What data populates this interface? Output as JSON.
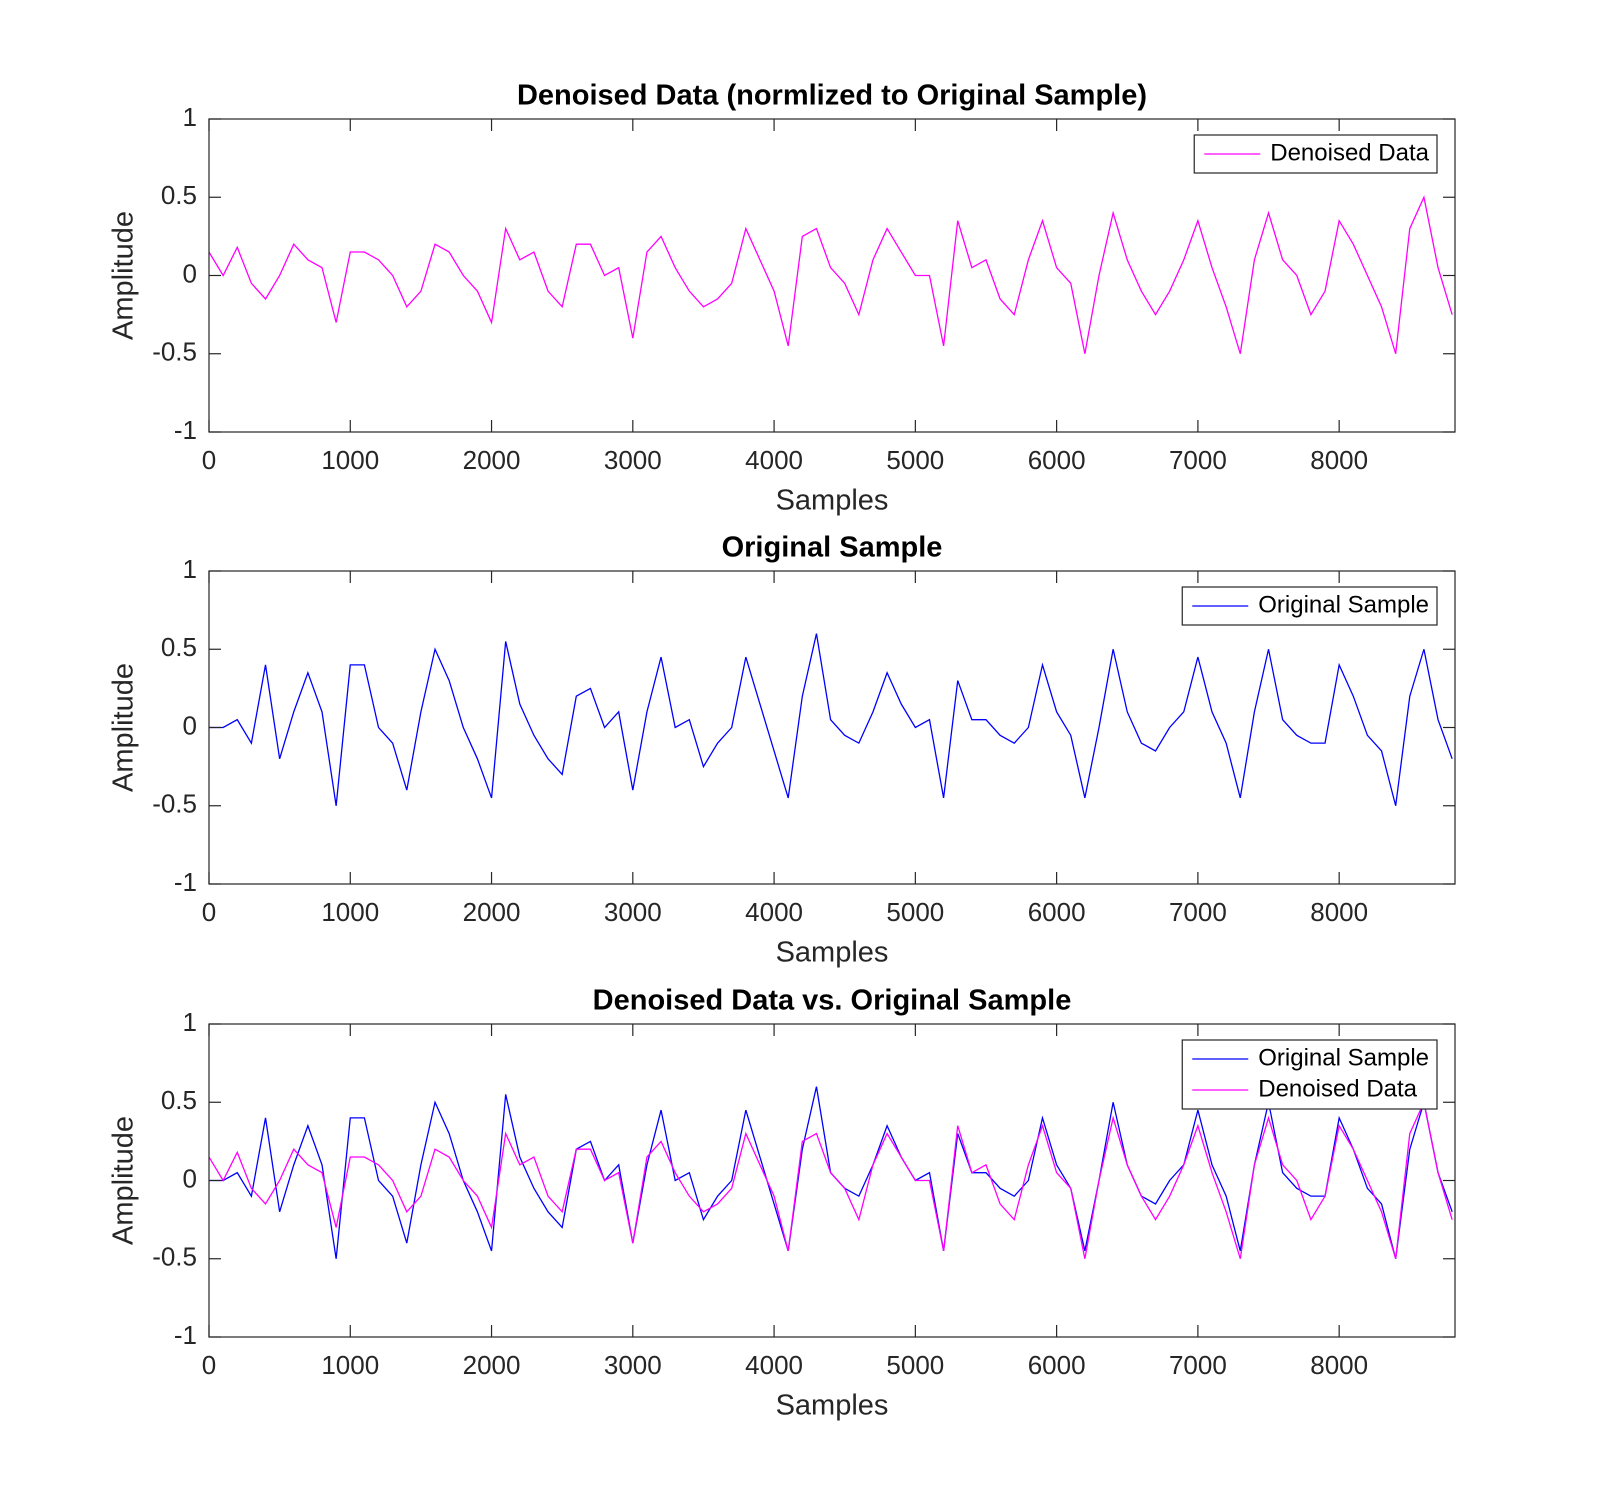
{
  "chart_data": [
    {
      "type": "line",
      "title": "Denoised Data (normlized to Original Sample)",
      "xlabel": "Samples",
      "ylabel": "Amplitude",
      "x": [
        0,
        100,
        200,
        300,
        400,
        500,
        600,
        700,
        800,
        900,
        1000,
        1100,
        1200,
        1300,
        1400,
        1500,
        1600,
        1700,
        1800,
        1900,
        2000,
        2100,
        2200,
        2300,
        2400,
        2500,
        2600,
        2700,
        2800,
        2900,
        3000,
        3100,
        3200,
        3300,
        3400,
        3500,
        3600,
        3700,
        3800,
        3900,
        4000,
        4100,
        4200,
        4300,
        4400,
        4500,
        4600,
        4700,
        4800,
        4900,
        5000,
        5100,
        5200,
        5300,
        5400,
        5500,
        5600,
        5700,
        5800,
        5900,
        6000,
        6100,
        6200,
        6300,
        6400,
        6500,
        6600,
        6700,
        6800,
        6900,
        7000,
        7100,
        7200,
        7300,
        7400,
        7500,
        7600,
        7700,
        7800,
        7900,
        8000,
        8100,
        8200,
        8300,
        8400,
        8500,
        8600,
        8700,
        8800
      ],
      "series": [
        {
          "name": "Denoised Data",
          "color": "#ff00ff",
          "values": [
            0.15,
            0.0,
            0.18,
            -0.05,
            -0.15,
            0.0,
            0.2,
            0.1,
            0.05,
            -0.3,
            0.15,
            0.15,
            0.1,
            0.0,
            -0.2,
            -0.1,
            0.2,
            0.15,
            0.0,
            -0.1,
            -0.3,
            0.3,
            0.1,
            0.15,
            -0.1,
            -0.2,
            0.2,
            0.2,
            0.0,
            0.05,
            -0.4,
            0.15,
            0.25,
            0.05,
            -0.1,
            -0.2,
            -0.15,
            -0.05,
            0.3,
            0.1,
            -0.1,
            -0.45,
            0.25,
            0.3,
            0.05,
            -0.05,
            -0.25,
            0.1,
            0.3,
            0.15,
            0.0,
            0.0,
            -0.45,
            0.35,
            0.05,
            0.1,
            -0.15,
            -0.25,
            0.1,
            0.35,
            0.05,
            -0.05,
            -0.5,
            0.0,
            0.4,
            0.1,
            -0.1,
            -0.25,
            -0.1,
            0.1,
            0.35,
            0.05,
            -0.2,
            -0.5,
            0.1,
            0.4,
            0.1,
            0.0,
            -0.25,
            -0.1,
            0.35,
            0.2,
            0.0,
            -0.2,
            -0.5,
            0.3,
            0.5,
            0.05,
            -0.25
          ]
        }
      ],
      "xlim": [
        0,
        8820
      ],
      "ylim": [
        -1,
        1
      ],
      "xticks": [
        0,
        1000,
        2000,
        3000,
        4000,
        5000,
        6000,
        7000,
        8000
      ],
      "yticks": [
        -1,
        -0.5,
        0,
        0.5,
        1
      ],
      "grid": false,
      "legend": "northeast"
    },
    {
      "type": "line",
      "title": "Original Sample",
      "xlabel": "Samples",
      "ylabel": "Amplitude",
      "x": [
        0,
        100,
        200,
        300,
        400,
        500,
        600,
        700,
        800,
        900,
        1000,
        1100,
        1200,
        1300,
        1400,
        1500,
        1600,
        1700,
        1800,
        1900,
        2000,
        2100,
        2200,
        2300,
        2400,
        2500,
        2600,
        2700,
        2800,
        2900,
        3000,
        3100,
        3200,
        3300,
        3400,
        3500,
        3600,
        3700,
        3800,
        3900,
        4000,
        4100,
        4200,
        4300,
        4400,
        4500,
        4600,
        4700,
        4800,
        4900,
        5000,
        5100,
        5200,
        5300,
        5400,
        5500,
        5600,
        5700,
        5800,
        5900,
        6000,
        6100,
        6200,
        6300,
        6400,
        6500,
        6600,
        6700,
        6800,
        6900,
        7000,
        7100,
        7200,
        7300,
        7400,
        7500,
        7600,
        7700,
        7800,
        7900,
        8000,
        8100,
        8200,
        8300,
        8400,
        8500,
        8600,
        8700,
        8800
      ],
      "series": [
        {
          "name": "Original Sample",
          "color": "#0000ff",
          "values": [
            0,
            0,
            0.05,
            -0.1,
            0.4,
            -0.2,
            0.1,
            0.35,
            0.1,
            -0.5,
            0.4,
            0.4,
            0.0,
            -0.1,
            -0.4,
            0.1,
            0.5,
            0.3,
            0.0,
            -0.2,
            -0.45,
            0.55,
            0.15,
            -0.05,
            -0.2,
            -0.3,
            0.2,
            0.25,
            0.0,
            0.1,
            -0.4,
            0.1,
            0.45,
            0.0,
            0.05,
            -0.25,
            -0.1,
            0.0,
            0.45,
            0.15,
            -0.15,
            -0.45,
            0.2,
            0.6,
            0.05,
            -0.05,
            -0.1,
            0.1,
            0.35,
            0.15,
            0.0,
            0.05,
            -0.45,
            0.3,
            0.05,
            0.05,
            -0.05,
            -0.1,
            0.0,
            0.4,
            0.1,
            -0.05,
            -0.45,
            0.0,
            0.5,
            0.1,
            -0.1,
            -0.15,
            0.0,
            0.1,
            0.45,
            0.1,
            -0.1,
            -0.45,
            0.1,
            0.5,
            0.05,
            -0.05,
            -0.1,
            -0.1,
            0.4,
            0.2,
            -0.05,
            -0.15,
            -0.5,
            0.2,
            0.5,
            0.05,
            -0.2
          ]
        }
      ],
      "xlim": [
        0,
        8820
      ],
      "ylim": [
        -1,
        1
      ],
      "xticks": [
        0,
        1000,
        2000,
        3000,
        4000,
        5000,
        6000,
        7000,
        8000
      ],
      "yticks": [
        -1,
        -0.5,
        0,
        0.5,
        1
      ],
      "grid": false,
      "legend": "northeast"
    },
    {
      "type": "line",
      "title": "Denoised Data vs. Original Sample",
      "xlabel": "Samples",
      "ylabel": "Amplitude",
      "x": [
        0,
        100,
        200,
        300,
        400,
        500,
        600,
        700,
        800,
        900,
        1000,
        1100,
        1200,
        1300,
        1400,
        1500,
        1600,
        1700,
        1800,
        1900,
        2000,
        2100,
        2200,
        2300,
        2400,
        2500,
        2600,
        2700,
        2800,
        2900,
        3000,
        3100,
        3200,
        3300,
        3400,
        3500,
        3600,
        3700,
        3800,
        3900,
        4000,
        4100,
        4200,
        4300,
        4400,
        4500,
        4600,
        4700,
        4800,
        4900,
        5000,
        5100,
        5200,
        5300,
        5400,
        5500,
        5600,
        5700,
        5800,
        5900,
        6000,
        6100,
        6200,
        6300,
        6400,
        6500,
        6600,
        6700,
        6800,
        6900,
        7000,
        7100,
        7200,
        7300,
        7400,
        7500,
        7600,
        7700,
        7800,
        7900,
        8000,
        8100,
        8200,
        8300,
        8400,
        8500,
        8600,
        8700,
        8800
      ],
      "series": [
        {
          "name": "Original Sample",
          "color": "#0000ff",
          "values": [
            0,
            0,
            0.05,
            -0.1,
            0.4,
            -0.2,
            0.1,
            0.35,
            0.1,
            -0.5,
            0.4,
            0.4,
            0.0,
            -0.1,
            -0.4,
            0.1,
            0.5,
            0.3,
            0.0,
            -0.2,
            -0.45,
            0.55,
            0.15,
            -0.05,
            -0.2,
            -0.3,
            0.2,
            0.25,
            0.0,
            0.1,
            -0.4,
            0.1,
            0.45,
            0.0,
            0.05,
            -0.25,
            -0.1,
            0.0,
            0.45,
            0.15,
            -0.15,
            -0.45,
            0.2,
            0.6,
            0.05,
            -0.05,
            -0.1,
            0.1,
            0.35,
            0.15,
            0.0,
            0.05,
            -0.45,
            0.3,
            0.05,
            0.05,
            -0.05,
            -0.1,
            0.0,
            0.4,
            0.1,
            -0.05,
            -0.45,
            0.0,
            0.5,
            0.1,
            -0.1,
            -0.15,
            0.0,
            0.1,
            0.45,
            0.1,
            -0.1,
            -0.45,
            0.1,
            0.5,
            0.05,
            -0.05,
            -0.1,
            -0.1,
            0.4,
            0.2,
            -0.05,
            -0.15,
            -0.5,
            0.2,
            0.5,
            0.05,
            -0.2
          ]
        },
        {
          "name": "Denoised Data",
          "color": "#ff00ff",
          "values": [
            0.15,
            0.0,
            0.18,
            -0.05,
            -0.15,
            0.0,
            0.2,
            0.1,
            0.05,
            -0.3,
            0.15,
            0.15,
            0.1,
            0.0,
            -0.2,
            -0.1,
            0.2,
            0.15,
            0.0,
            -0.1,
            -0.3,
            0.3,
            0.1,
            0.15,
            -0.1,
            -0.2,
            0.2,
            0.2,
            0.0,
            0.05,
            -0.4,
            0.15,
            0.25,
            0.05,
            -0.1,
            -0.2,
            -0.15,
            -0.05,
            0.3,
            0.1,
            -0.1,
            -0.45,
            0.25,
            0.3,
            0.05,
            -0.05,
            -0.25,
            0.1,
            0.3,
            0.15,
            0.0,
            0.0,
            -0.45,
            0.35,
            0.05,
            0.1,
            -0.15,
            -0.25,
            0.1,
            0.35,
            0.05,
            -0.05,
            -0.5,
            0.0,
            0.4,
            0.1,
            -0.1,
            -0.25,
            -0.1,
            0.1,
            0.35,
            0.05,
            -0.2,
            -0.5,
            0.1,
            0.4,
            0.1,
            0.0,
            -0.25,
            -0.1,
            0.35,
            0.2,
            0.0,
            -0.2,
            -0.5,
            0.3,
            0.5,
            0.05,
            -0.25
          ]
        }
      ],
      "xlim": [
        0,
        8820
      ],
      "ylim": [
        -1,
        1
      ],
      "xticks": [
        0,
        1000,
        2000,
        3000,
        4000,
        5000,
        6000,
        7000,
        8000
      ],
      "yticks": [
        -1,
        -0.5,
        0,
        0.5,
        1
      ],
      "grid": false,
      "legend": "northeast"
    }
  ]
}
